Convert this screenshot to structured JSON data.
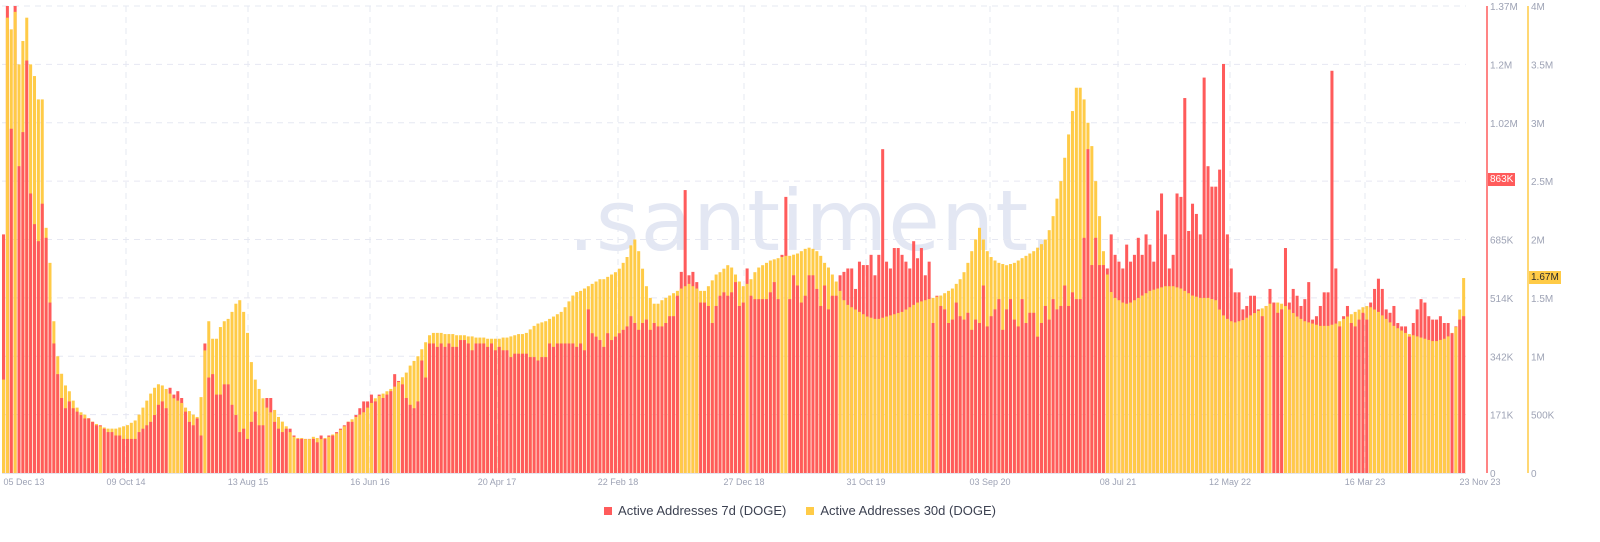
{
  "watermark": ".santiment.",
  "legend": [
    {
      "label": "Active Addresses 7d (DOGE)",
      "color": "#ff5b5b"
    },
    {
      "label": "Active Addresses 30d (DOGE)",
      "color": "#ffcb47"
    }
  ],
  "badges": {
    "left_current": "863K",
    "right_current": "1.67M"
  },
  "chart_data": {
    "type": "bar",
    "title": "",
    "xlabel": "",
    "x_tick_labels": [
      "05 Dec 13",
      "09 Oct 14",
      "13 Aug 15",
      "16 Jun 16",
      "20 Apr 17",
      "22 Feb 18",
      "27 Dec 18",
      "31 Oct 19",
      "03 Sep 20",
      "08 Jul 21",
      "12 May 22",
      "16 Mar 23",
      "23 Nov 23"
    ],
    "left_axis": {
      "label": "Active Addresses 7d (DOGE)",
      "ticks": [
        "0",
        "171K",
        "342K",
        "514K",
        "685K",
        "863K",
        "1.02M",
        "1.2M",
        "1.37M"
      ],
      "ylim": [
        0,
        1370000
      ],
      "color": "#ff5b5b"
    },
    "right_axis": {
      "label": "Active Addresses 30d (DOGE)",
      "ticks": [
        "0",
        "500K",
        "1M",
        "1.5M",
        "2M",
        "2.5M",
        "3M",
        "3.5M",
        "4M"
      ],
      "ylim": [
        0,
        4000000
      ],
      "color": "#ffcb47"
    },
    "grid": true,
    "legend_position": "bottom",
    "series": [
      {
        "name": "Active Addresses 7d (DOGE)",
        "axis": "left",
        "color": "#ff5b5b",
        "values_k": [
          700,
          1370,
          1010,
          1370,
          900,
          1000,
          1210,
          820,
          730,
          680,
          790,
          690,
          500,
          380,
          290,
          220,
          190,
          210,
          190,
          180,
          170,
          160,
          160,
          150,
          140,
          140,
          130,
          120,
          120,
          110,
          110,
          100,
          100,
          100,
          100,
          120,
          130,
          140,
          150,
          170,
          200,
          210,
          190,
          250,
          230,
          240,
          220,
          180,
          150,
          140,
          160,
          110,
          380,
          280,
          290,
          230,
          230,
          260,
          260,
          200,
          170,
          120,
          130,
          100,
          150,
          180,
          140,
          140,
          220,
          220,
          150,
          130,
          120,
          130,
          130,
          110,
          100,
          100,
          100,
          100,
          100,
          90,
          110,
          100,
          110,
          110,
          120,
          130,
          140,
          150,
          150,
          170,
          190,
          210,
          210,
          230,
          210,
          230,
          220,
          230,
          240,
          290,
          270,
          260,
          220,
          200,
          190,
          210,
          330,
          280,
          380,
          380,
          370,
          380,
          370,
          380,
          370,
          370,
          390,
          390,
          380,
          360,
          380,
          380,
          380,
          370,
          380,
          360,
          370,
          360,
          360,
          340,
          350,
          350,
          350,
          350,
          340,
          340,
          330,
          340,
          340,
          380,
          370,
          380,
          380,
          380,
          380,
          380,
          370,
          380,
          360,
          480,
          410,
          400,
          390,
          370,
          410,
          390,
          400,
          410,
          420,
          430,
          460,
          440,
          420,
          440,
          450,
          420,
          440,
          430,
          430,
          440,
          460,
          460,
          520,
          590,
          830,
          580,
          590,
          560,
          500,
          500,
          490,
          440,
          490,
          520,
          530,
          520,
          530,
          560,
          490,
          500,
          600,
          520,
          510,
          510,
          510,
          510,
          530,
          560,
          510,
          640,
          810,
          510,
          580,
          550,
          500,
          520,
          580,
          580,
          540,
          490,
          550,
          480,
          520,
          520,
          580,
          590,
          600,
          600,
          540,
          620,
          610,
          610,
          640,
          580,
          640,
          950,
          620,
          600,
          660,
          660,
          640,
          620,
          600,
          680,
          630,
          660,
          580,
          620,
          440,
          520,
          490,
          480,
          440,
          450,
          500,
          460,
          450,
          470,
          420,
          450,
          440,
          550,
          430,
          460,
          480,
          510,
          420,
          480,
          510,
          450,
          430,
          510,
          440,
          470,
          470,
          400,
          440,
          490,
          450,
          510,
          480,
          490,
          550,
          490,
          530,
          510,
          510,
          690,
          950,
          610,
          690,
          610,
          610,
          600,
          700,
          640,
          620,
          600,
          670,
          620,
          640,
          690,
          640,
          700,
          670,
          620,
          770,
          820,
          700,
          600,
          640,
          820,
          810,
          1100,
          710,
          790,
          760,
          700,
          1160,
          900,
          840,
          840,
          890,
          1200,
          700,
          600,
          530,
          530,
          480,
          490,
          520,
          520,
          480,
          460,
          490,
          540,
          500,
          470,
          480,
          660,
          500,
          540,
          520,
          490,
          510,
          560,
          450,
          460,
          490,
          530,
          530,
          1180,
          600,
          430,
          460,
          490,
          440,
          430,
          450,
          470,
          450,
          500,
          540,
          570,
          540,
          480,
          470,
          490,
          440,
          430,
          430,
          400,
          440,
          480,
          510,
          500,
          460,
          450,
          450,
          460,
          440,
          440,
          410,
          430,
          450,
          460,
          500,
          430,
          540,
          650,
          600,
          450,
          460,
          540,
          430,
          480,
          500,
          470,
          430,
          430,
          420,
          410,
          450,
          470,
          450,
          460,
          460,
          520,
          540,
          420,
          440,
          430,
          430,
          560,
          863
        ],
        "note": "Approximate per-bar values in thousands, sampled across the 05 Dec 13 – 23 Nov 23 range"
      },
      {
        "name": "Active Addresses 30d (DOGE)",
        "axis": "right",
        "color": "#ffcb47",
        "values_k": [
          800,
          3900,
          3800,
          3950,
          3500,
          3700,
          3900,
          3500,
          3400,
          3200,
          3200,
          2100,
          1800,
          1300,
          1000,
          850,
          750,
          700,
          620,
          560,
          520,
          500,
          470,
          440,
          420,
          400,
          390,
          380,
          380,
          380,
          390,
          400,
          410,
          430,
          450,
          500,
          560,
          620,
          680,
          730,
          760,
          750,
          720,
          680,
          640,
          620,
          600,
          560,
          530,
          500,
          480,
          650,
          1050,
          1300,
          1150,
          1150,
          1250,
          1300,
          1320,
          1380,
          1450,
          1480,
          1380,
          1200,
          950,
          800,
          720,
          640,
          560,
          520,
          540,
          480,
          440,
          400,
          350,
          310,
          300,
          300,
          290,
          290,
          310,
          300,
          290,
          300,
          310,
          330,
          340,
          370,
          400,
          440,
          460,
          480,
          500,
          520,
          560,
          600,
          640,
          660,
          680,
          700,
          720,
          740,
          780,
          820,
          860,
          920,
          960,
          1000,
          1060,
          1120,
          1180,
          1200,
          1200,
          1200,
          1190,
          1190,
          1190,
          1180,
          1180,
          1180,
          1170,
          1170,
          1160,
          1160,
          1160,
          1150,
          1150,
          1150,
          1150,
          1160,
          1160,
          1170,
          1180,
          1190,
          1190,
          1200,
          1230,
          1260,
          1280,
          1290,
          1300,
          1320,
          1340,
          1360,
          1380,
          1420,
          1470,
          1520,
          1550,
          1560,
          1580,
          1600,
          1620,
          1640,
          1660,
          1660,
          1680,
          1700,
          1720,
          1750,
          1800,
          1850,
          1950,
          2000,
          1900,
          1750,
          1600,
          1500,
          1450,
          1450,
          1480,
          1500,
          1520,
          1540,
          1560,
          1580,
          1600,
          1620,
          1600,
          1580,
          1560,
          1560,
          1600,
          1650,
          1700,
          1720,
          1750,
          1780,
          1760,
          1700,
          1640,
          1600,
          1620,
          1660,
          1720,
          1760,
          1780,
          1800,
          1820,
          1830,
          1840,
          1850,
          1860,
          1860,
          1870,
          1880,
          1900,
          1920,
          1930,
          1920,
          1900,
          1860,
          1800,
          1760,
          1700,
          1640,
          1560,
          1480,
          1440,
          1420,
          1400,
          1380,
          1360,
          1340,
          1330,
          1320,
          1320,
          1330,
          1340,
          1350,
          1360,
          1370,
          1380,
          1400,
          1420,
          1440,
          1460,
          1470,
          1480,
          1490,
          1500,
          1510,
          1520,
          1540,
          1560,
          1580,
          1620,
          1660,
          1720,
          1800,
          1900,
          2000,
          2100,
          2000,
          1900,
          1850,
          1820,
          1800,
          1790,
          1780,
          1790,
          1800,
          1820,
          1840,
          1860,
          1880,
          1900,
          1930,
          1960,
          2000,
          2080,
          2200,
          2350,
          2500,
          2700,
          2900,
          3100,
          3300,
          3300,
          3200,
          3000,
          2800,
          2500,
          2200,
          1900,
          1700,
          1550,
          1500,
          1480,
          1460,
          1450,
          1460,
          1480,
          1500,
          1520,
          1540,
          1560,
          1570,
          1580,
          1590,
          1600,
          1600,
          1600,
          1590,
          1580,
          1560,
          1540,
          1520,
          1510,
          1500,
          1500,
          1500,
          1490,
          1480,
          1400,
          1350,
          1320,
          1300,
          1290,
          1300,
          1310,
          1330,
          1350,
          1370,
          1390,
          1410,
          1430,
          1450,
          1460,
          1460,
          1450,
          1430,
          1400,
          1370,
          1340,
          1320,
          1300,
          1290,
          1280,
          1270,
          1260,
          1260,
          1260,
          1270,
          1280,
          1300,
          1320,
          1340,
          1360,
          1380,
          1400,
          1420,
          1430,
          1420,
          1400,
          1380,
          1350,
          1320,
          1290,
          1260,
          1240,
          1220,
          1200,
          1190,
          1180,
          1170,
          1160,
          1150,
          1140,
          1130,
          1130,
          1140,
          1150,
          1170,
          1200,
          1250,
          1400,
          1670
        ],
        "note": "Approximate per-bar values in thousands"
      }
    ]
  }
}
